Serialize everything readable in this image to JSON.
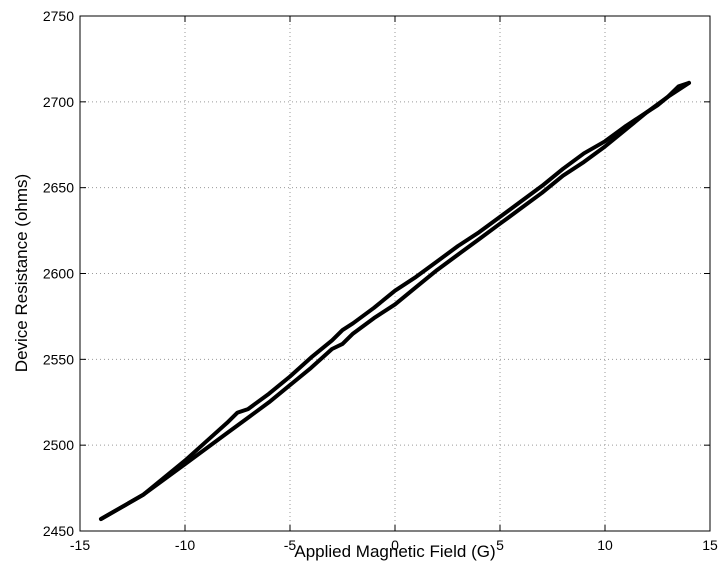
{
  "chart_data": {
    "type": "line",
    "xlabel": "Applied Magnetic Field (G)",
    "ylabel": "Device Resistance (ohms)",
    "xlim": [
      -15,
      15
    ],
    "ylim": [
      2450,
      2750
    ],
    "xticks": [
      "-15",
      "-10",
      "-5",
      "0",
      "5",
      "10",
      "15"
    ],
    "yticks": [
      "2450",
      "2500",
      "2550",
      "2600",
      "2650",
      "2700",
      "2750"
    ],
    "grid": true,
    "legend": "none",
    "line_color": "#000000",
    "series": [
      {
        "x": [
          -14,
          -12,
          -10,
          -9,
          -8,
          -7.5,
          -7,
          -6,
          -5,
          -4,
          -3,
          -2.5,
          -2,
          -1,
          0,
          1,
          2,
          3,
          4,
          5,
          6,
          7,
          8,
          9,
          10,
          11,
          12,
          12.5,
          13,
          13.5,
          14
        ],
        "y": [
          2457,
          2471,
          2491,
          2502,
          2513,
          2519,
          2521,
          2530,
          2540,
          2551,
          2561,
          2567,
          2571,
          2580,
          2590,
          2598,
          2607,
          2616,
          2624,
          2633,
          2642,
          2651,
          2661,
          2670,
          2677,
          2686,
          2694,
          2698,
          2703,
          2709,
          2711
        ]
      },
      {
        "x": [
          -14,
          -12,
          -10,
          -9,
          -8,
          -7,
          -6,
          -5,
          -4,
          -3,
          -2.5,
          -2,
          -1,
          0,
          1,
          2,
          3,
          4,
          5,
          6,
          7,
          8,
          9,
          10,
          11,
          12,
          13,
          14
        ],
        "y": [
          2457,
          2471,
          2489,
          2498,
          2507,
          2516,
          2525,
          2535,
          2545,
          2556,
          2559,
          2565,
          2574,
          2582,
          2592,
          2602,
          2611,
          2620,
          2629,
          2638,
          2647,
          2657,
          2665,
          2674,
          2684,
          2694,
          2703,
          2711
        ]
      }
    ]
  }
}
